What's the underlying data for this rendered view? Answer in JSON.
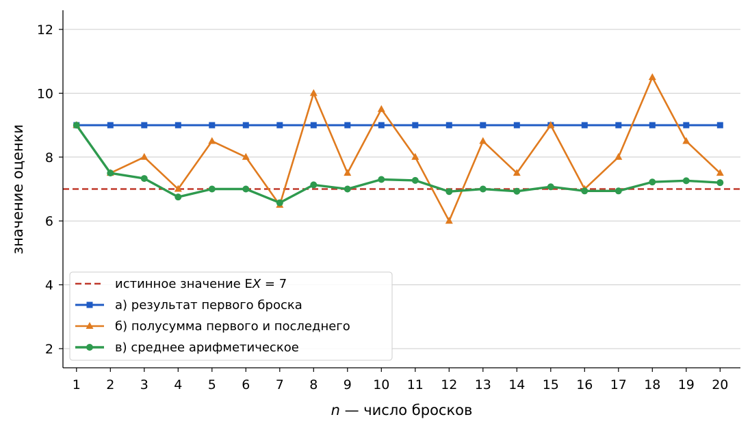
{
  "chart_data": {
    "type": "line",
    "xlabel_var": "n",
    "xlabel_rest": " — число бросков",
    "ylabel": "значение оценки",
    "xlim": [
      0.6,
      20.6
    ],
    "ylim": [
      1.4,
      12.6
    ],
    "x": [
      1,
      2,
      3,
      4,
      5,
      6,
      7,
      8,
      9,
      10,
      11,
      12,
      13,
      14,
      15,
      16,
      17,
      18,
      19,
      20
    ],
    "y_ticks": [
      2,
      4,
      6,
      8,
      10,
      12
    ],
    "grid": "horizontal",
    "legend_position": "lower-left",
    "reference": {
      "name_pre": "истинное значение E",
      "name_var": "X",
      "name_post": " = 7",
      "value": 7,
      "color": "#c0392b",
      "style": "dashed"
    },
    "series": [
      {
        "name": "а) результат первого броска",
        "color": "#1f5bc4",
        "marker": "square",
        "values": [
          9,
          9,
          9,
          9,
          9,
          9,
          9,
          9,
          9,
          9,
          9,
          9,
          9,
          9,
          9,
          9,
          9,
          9,
          9,
          9
        ]
      },
      {
        "name": "б) полусумма первого и последнего",
        "color": "#e07b1f",
        "marker": "triangle",
        "values": [
          9,
          7.5,
          8,
          7,
          8.5,
          8,
          6.5,
          10,
          7.5,
          9.5,
          8,
          6,
          8.5,
          7.5,
          9,
          7,
          8,
          10.5,
          8.5,
          7.5
        ]
      },
      {
        "name": "в) среднее арифметическое",
        "color": "#2e9a4e",
        "marker": "circle",
        "values": [
          9,
          7.5,
          7.33,
          6.75,
          7,
          7,
          6.57,
          7.13,
          7,
          7.3,
          7.27,
          6.92,
          7,
          6.93,
          7.07,
          6.94,
          6.94,
          7.22,
          7.26,
          7.2
        ]
      }
    ]
  }
}
